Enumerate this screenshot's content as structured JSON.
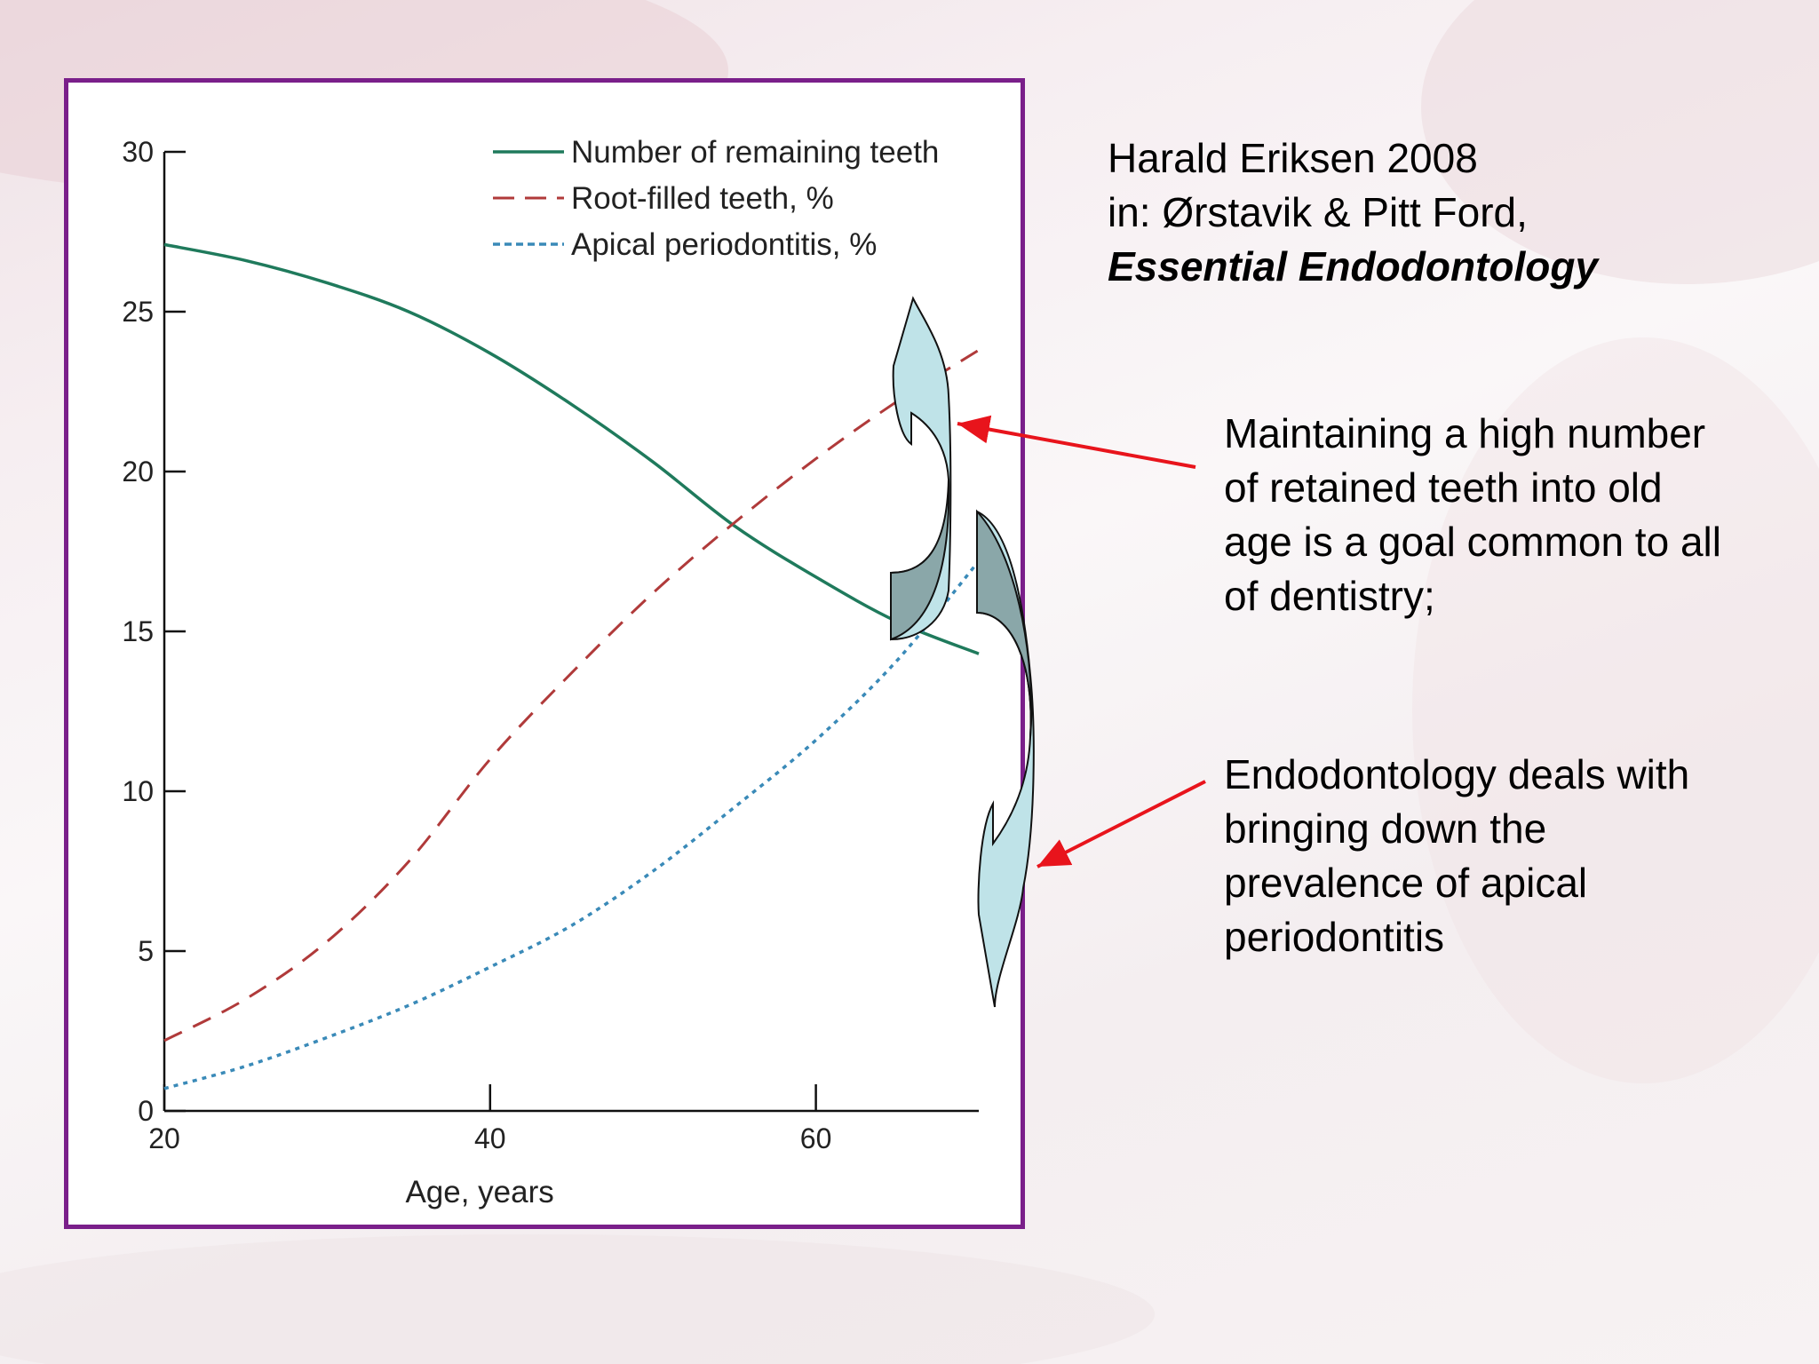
{
  "citation": {
    "line1": "Harald Eriksen 2008",
    "line2": "in: Ørstavik & Pitt Ford,",
    "book": "Essential Endodontology"
  },
  "notes": [
    "Maintaining a high number of retained teeth into old age is a goal common to all of dentistry;",
    "Endodontology deals with bringing down the prevalence of apical periodontitis"
  ],
  "colors": {
    "frame": "#7a1f8a",
    "teeth_line": "#1f7a5c",
    "root_filled_line": "#b03a3a",
    "apical_line": "#3a8ab8",
    "arrow_red": "#e8141c",
    "curved_arrow_light": "#bfe3e8",
    "curved_arrow_dark": "#8aa7a9"
  },
  "chart_data": {
    "type": "line",
    "title": "",
    "xlabel": "Age, years",
    "ylabel": "",
    "xlim": [
      20,
      70
    ],
    "ylim": [
      0,
      30
    ],
    "xticks": [
      20,
      40,
      60
    ],
    "yticks": [
      0,
      5,
      10,
      15,
      20,
      25,
      30
    ],
    "grid": false,
    "legend_position": "top-right",
    "series": [
      {
        "name": "Number of remaining teeth",
        "style": "solid",
        "x": [
          20,
          25,
          30,
          35,
          40,
          45,
          50,
          55,
          60,
          65,
          70
        ],
        "y": [
          27.1,
          26.6,
          25.9,
          25.0,
          23.7,
          22.1,
          20.3,
          18.3,
          16.7,
          15.3,
          14.3
        ]
      },
      {
        "name": "Root-filled teeth, %",
        "style": "dashed",
        "x": [
          20,
          25,
          30,
          35,
          40,
          45,
          50,
          55,
          60,
          65,
          70
        ],
        "y": [
          2.2,
          3.5,
          5.3,
          7.8,
          11.0,
          13.7,
          16.2,
          18.4,
          20.4,
          22.2,
          23.8
        ]
      },
      {
        "name": "Apical periodontitis, %",
        "style": "dotted",
        "x": [
          20,
          25,
          30,
          35,
          40,
          45,
          50,
          55,
          60,
          65,
          70
        ],
        "y": [
          0.7,
          1.4,
          2.3,
          3.3,
          4.5,
          5.8,
          7.5,
          9.5,
          11.6,
          14.1,
          17.2
        ]
      }
    ]
  }
}
